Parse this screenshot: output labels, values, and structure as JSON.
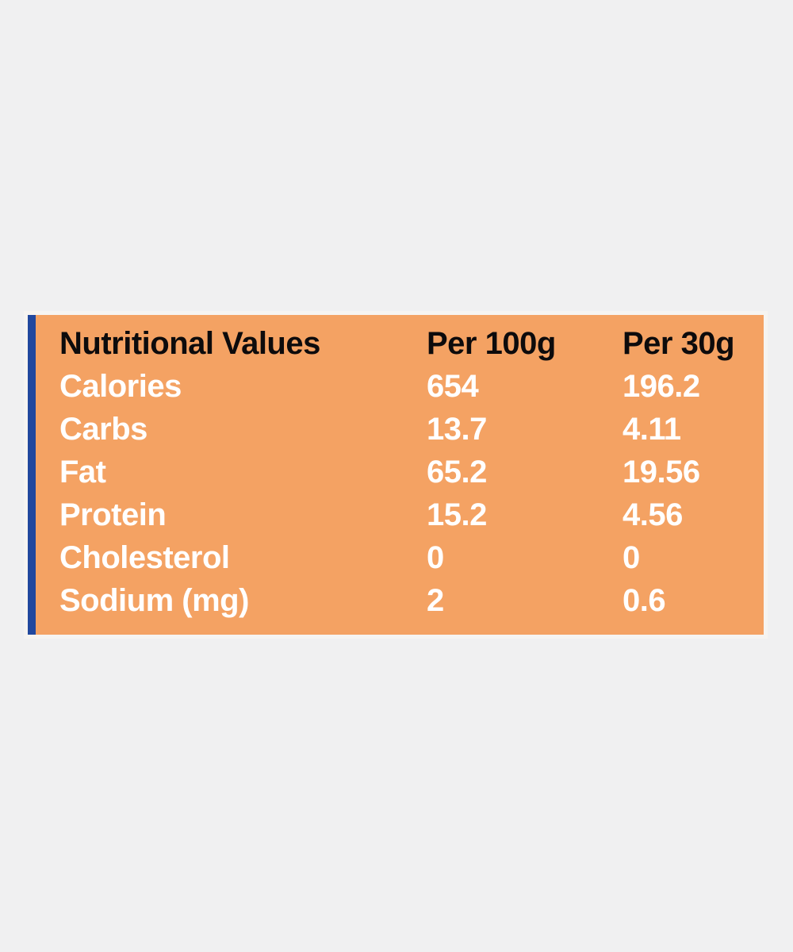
{
  "colors": {
    "background": "#F0F0F1",
    "panel_orange": "#F4A263",
    "accent_blue": "#21489E",
    "header_text": "#0D0B0C",
    "row_text": "#FFFFFF"
  },
  "table": {
    "header": {
      "c1": "Nutritional Values",
      "c2": "Per 100g",
      "c3": "Per 30g"
    },
    "rows": [
      {
        "label": "Calories",
        "v100": "654",
        "v30": "196.2"
      },
      {
        "label": "Carbs",
        "v100": "13.7",
        "v30": "4.11"
      },
      {
        "label": "Fat",
        "v100": "65.2",
        "v30": "19.56"
      },
      {
        "label": "Protein",
        "v100": "15.2",
        "v30": "4.56"
      },
      {
        "label": "Cholesterol",
        "v100": "0",
        "v30": "0"
      },
      {
        "label": "Sodium (mg)",
        "v100": "2",
        "v30": "0.6"
      }
    ]
  },
  "chart_data": {
    "type": "table",
    "title": "Nutritional Values",
    "columns": [
      "Nutritional Values",
      "Per 100g",
      "Per 30g"
    ],
    "rows": [
      {
        "label": "Calories",
        "per_100g": 654,
        "per_30g": 196.2
      },
      {
        "label": "Carbs",
        "per_100g": 13.7,
        "per_30g": 4.11
      },
      {
        "label": "Fat",
        "per_100g": 65.2,
        "per_30g": 19.56
      },
      {
        "label": "Protein",
        "per_100g": 15.2,
        "per_30g": 4.56
      },
      {
        "label": "Cholesterol",
        "per_100g": 0,
        "per_30g": 0
      },
      {
        "label": "Sodium (mg)",
        "per_100g": 2,
        "per_30g": 0.6
      }
    ],
    "layout": {
      "header_text_color": "#0D0B0C",
      "body_text_color": "#FFFFFF",
      "panel_color": "#F4A263",
      "accent_bar_color": "#21489E"
    }
  }
}
